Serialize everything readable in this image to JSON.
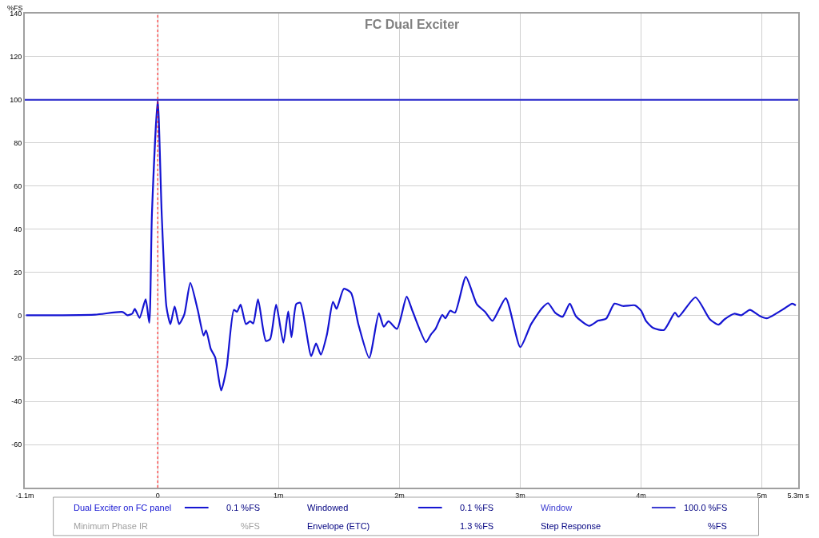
{
  "chart_data": {
    "type": "line",
    "title": "FC Dual Exciter",
    "ylabel": "%FS",
    "xlim": [
      -1.1,
      5.3
    ],
    "xticks": [
      {
        "value": -1.1,
        "label": "-1.1m"
      },
      0,
      {
        "value": 1,
        "label": "1m"
      },
      {
        "value": 2,
        "label": "2m"
      },
      {
        "value": 3,
        "label": "3m"
      },
      {
        "value": 4,
        "label": "4m"
      },
      {
        "value": 5,
        "label": "5m"
      },
      {
        "value": 5.3,
        "label": "5.3m s"
      }
    ],
    "ylim": [
      -80,
      140
    ],
    "yticks": [
      -60,
      -40,
      -20,
      0,
      20,
      40,
      60,
      80,
      100,
      120,
      140
    ],
    "grid": true,
    "legend": "bottom",
    "line_style": "solid",
    "marker": "none",
    "ref_lines": [
      {
        "axis": "x",
        "value": 0,
        "color": "#ff0000",
        "line_style": "dotted"
      }
    ],
    "series": [
      {
        "name": "Dual Exciter on FC panel",
        "color": "#1414d2",
        "x": [
          -1.09,
          -0.52,
          -0.29,
          -0.25,
          -0.21,
          -0.19,
          -0.15,
          -0.1,
          -0.07,
          -0.048,
          0,
          0.033,
          0.072,
          0.105,
          0.14,
          0.177,
          0.22,
          0.27,
          0.33,
          0.38,
          0.4,
          0.44,
          0.475,
          0.525,
          0.57,
          0.63,
          0.656,
          0.686,
          0.73,
          0.765,
          0.79,
          0.83,
          0.895,
          0.93,
          0.98,
          1.04,
          1.08,
          1.107,
          1.146,
          1.18,
          1.27,
          1.31,
          1.35,
          1.4,
          1.45,
          1.48,
          1.54,
          1.6,
          1.66,
          1.75,
          1.83,
          1.87,
          1.91,
          1.98,
          2.06,
          2.11,
          2.22,
          2.26,
          2.3,
          2.355,
          2.38,
          2.42,
          2.46,
          2.55,
          2.64,
          2.71,
          2.77,
          2.88,
          3.0,
          3.09,
          3.18,
          3.23,
          3.29,
          3.35,
          3.41,
          3.46,
          3.57,
          3.645,
          3.71,
          3.78,
          3.85,
          3.95,
          4.0,
          4.04,
          4.1,
          4.19,
          4.28,
          4.31,
          4.45,
          4.57,
          4.64,
          4.69,
          4.77,
          4.83,
          4.9,
          4.985,
          5.04,
          5.19,
          5.25,
          5.28
        ],
        "values": [
          0.0,
          0.3,
          1.5,
          0.0,
          0.8,
          3.0,
          -1.2,
          7.4,
          -3.5,
          47,
          100,
          47,
          4.0,
          -4.1,
          4.1,
          -4.1,
          0.4,
          15.0,
          2.7,
          -9.4,
          -7.0,
          -15.8,
          -19.5,
          -34.9,
          -24.4,
          2.5,
          1.6,
          4.9,
          -4.1,
          -2.8,
          -3.8,
          7.4,
          -11.9,
          -11.1,
          4.9,
          -12.7,
          1.8,
          -10.2,
          5.2,
          5.8,
          -18.9,
          -13.1,
          -18.3,
          -9.0,
          6.2,
          3.0,
          12.3,
          10.4,
          -4.1,
          -19.8,
          0.9,
          -5.3,
          -2.8,
          -6.3,
          8.6,
          1.7,
          -12.5,
          -9.0,
          -6.2,
          0.2,
          -1.4,
          2.1,
          1.2,
          17.8,
          5.2,
          1.5,
          -2.6,
          7.9,
          -14.8,
          -4.1,
          3.3,
          5.6,
          1.1,
          -0.7,
          5.4,
          -0.4,
          -4.9,
          -2.5,
          -1.6,
          5.4,
          4.3,
          4.6,
          2.1,
          -2.6,
          -5.9,
          -6.8,
          1.2,
          -0.7,
          8.3,
          -1.9,
          -4.4,
          -1.9,
          0.7,
          0.0,
          2.5,
          -0.4,
          -1.4,
          3.3,
          5.4,
          4.6
        ]
      },
      {
        "name": "Window",
        "color": "#3a3ad0",
        "x": [
          -1.1,
          5.3
        ],
        "values": [
          100,
          100
        ]
      }
    ],
    "annotations": [
      "0.1 %FS",
      "Windowed",
      "0.1 %FS",
      "100.0 %FS",
      "Minimum Phase IR",
      "%FS",
      "Envelope (ETC)",
      "1.3 %FS",
      "Step Response",
      "%FS"
    ]
  }
}
